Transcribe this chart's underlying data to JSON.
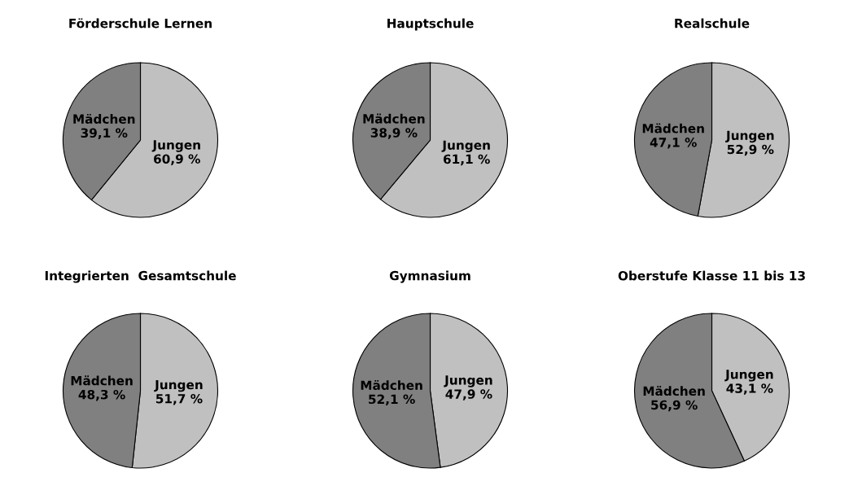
{
  "chart_data": [
    {
      "type": "pie",
      "title": "Förderschule Lernen",
      "categories": [
        "Jungen",
        "Mädchen"
      ],
      "values": [
        60.9,
        39.1
      ],
      "colors": [
        "#c0c0c0",
        "#808080"
      ],
      "value_labels": [
        "60,9 %",
        "39,1 %"
      ]
    },
    {
      "type": "pie",
      "title": "Hauptschule",
      "categories": [
        "Jungen",
        "Mädchen"
      ],
      "values": [
        61.1,
        38.9
      ],
      "colors": [
        "#c0c0c0",
        "#808080"
      ],
      "value_labels": [
        "61,1 %",
        "38,9 %"
      ]
    },
    {
      "type": "pie",
      "title": "Realschule",
      "categories": [
        "Jungen",
        "Mädchen"
      ],
      "values": [
        52.9,
        47.1
      ],
      "colors": [
        "#c0c0c0",
        "#808080"
      ],
      "value_labels": [
        "52,9 %",
        "47,1 %"
      ]
    },
    {
      "type": "pie",
      "title": "Integrierten  Gesamtschule",
      "categories": [
        "Jungen",
        "Mädchen"
      ],
      "values": [
        51.7,
        48.3
      ],
      "colors": [
        "#c0c0c0",
        "#808080"
      ],
      "value_labels": [
        "51,7 %",
        "48,3 %"
      ]
    },
    {
      "type": "pie",
      "title": "Gymnasium",
      "categories": [
        "Jungen",
        "Mädchen"
      ],
      "values": [
        47.9,
        52.1
      ],
      "colors": [
        "#c0c0c0",
        "#808080"
      ],
      "value_labels": [
        "47,9 %",
        "52,1 %"
      ]
    },
    {
      "type": "pie",
      "title": "Oberstufe Klasse 11 bis 13",
      "categories": [
        "Jungen",
        "Mädchen"
      ],
      "values": [
        43.1,
        56.9
      ],
      "colors": [
        "#c0c0c0",
        "#808080"
      ],
      "value_labels": [
        "43,1 %",
        "56,9 %"
      ]
    }
  ]
}
